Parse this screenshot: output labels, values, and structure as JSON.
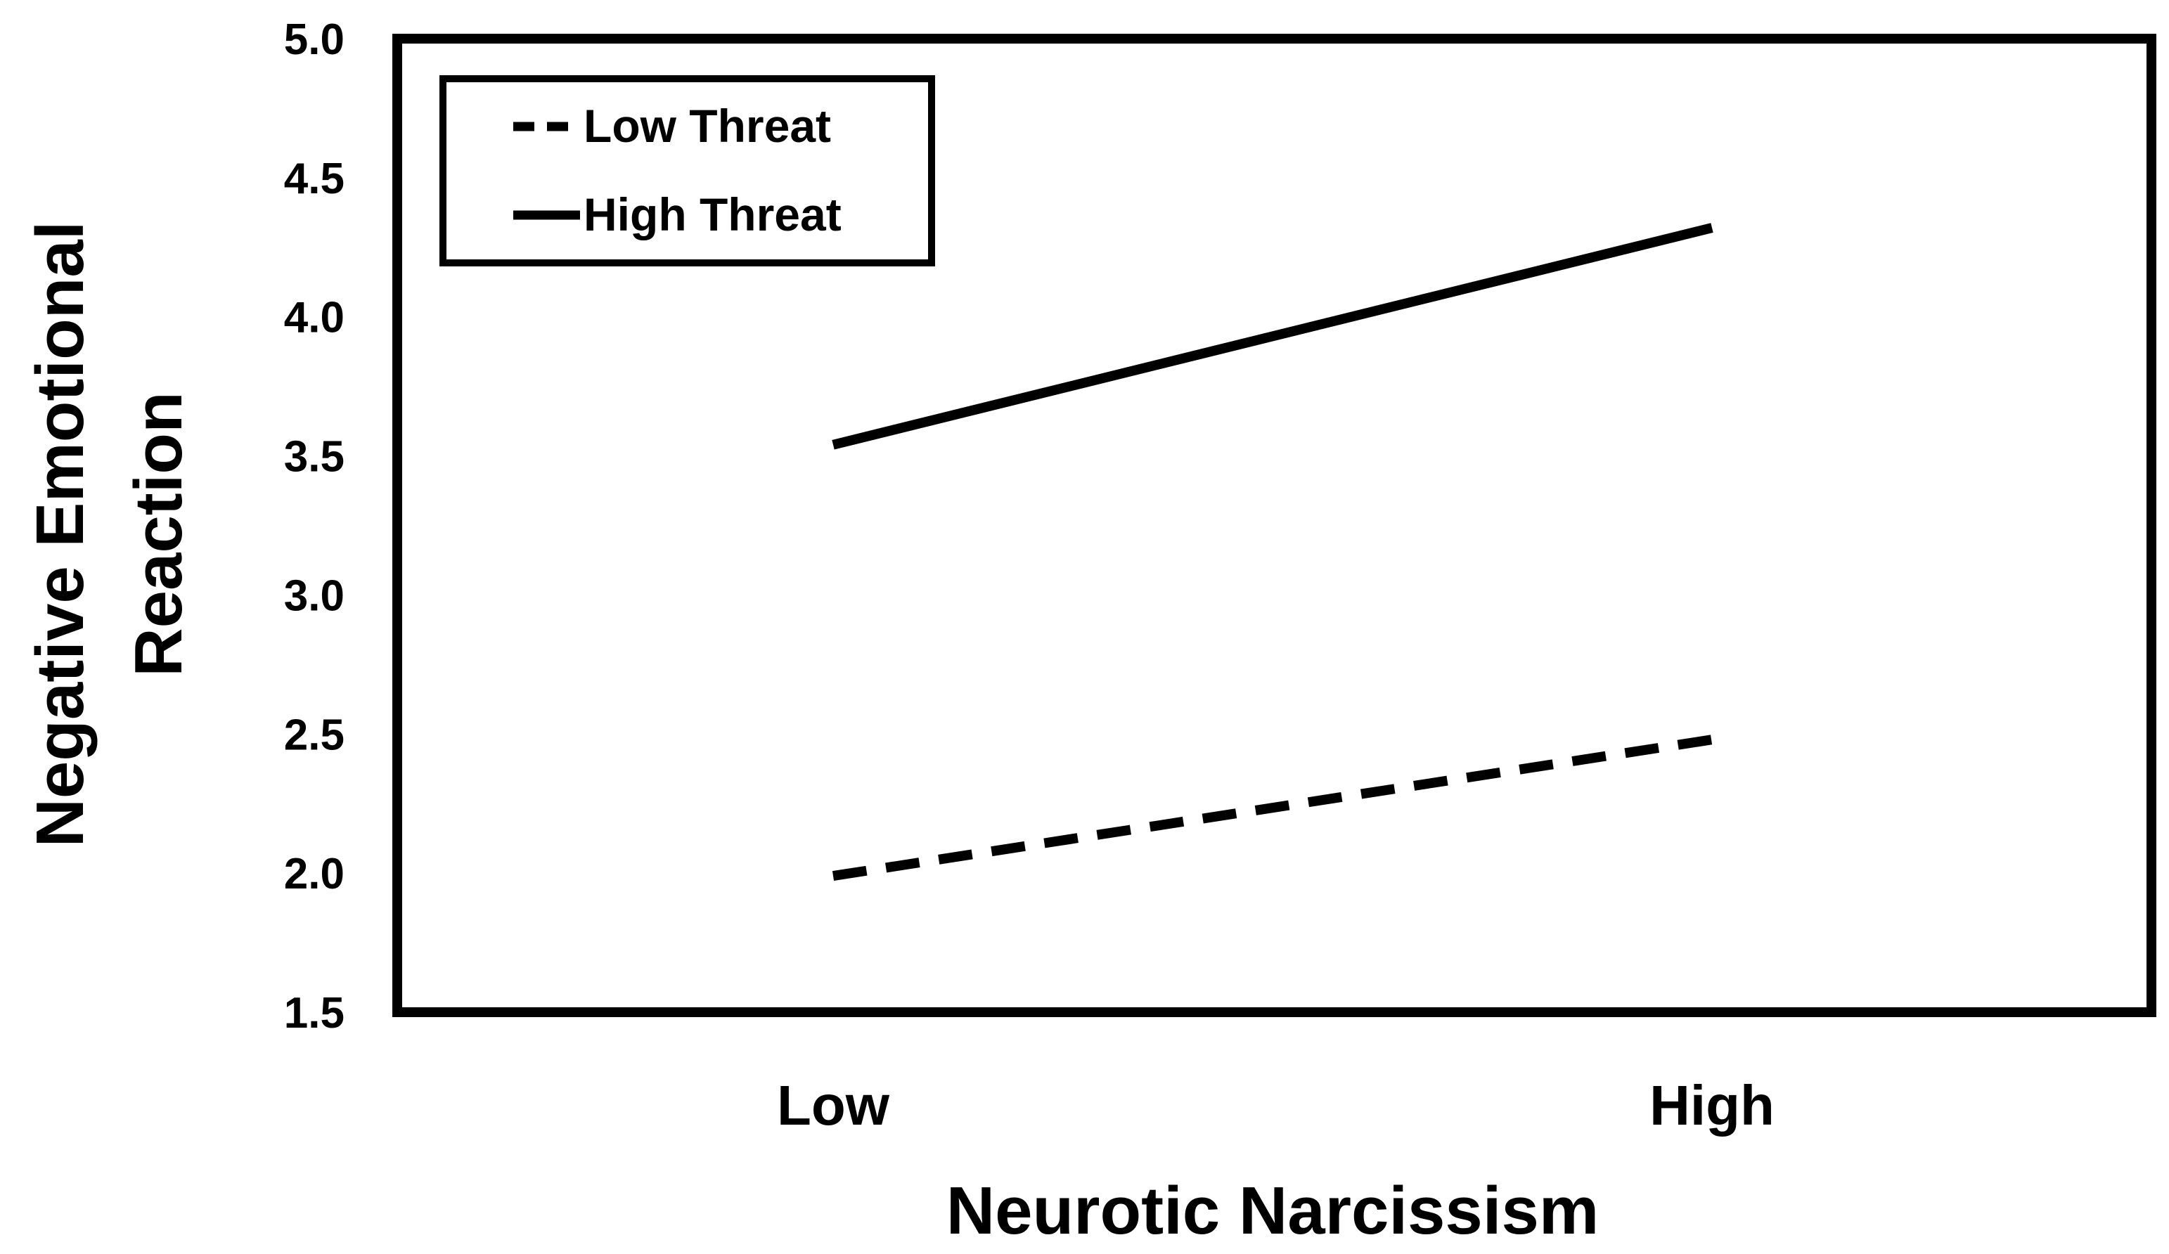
{
  "chart_data": {
    "type": "line",
    "categories": [
      "Low",
      "High"
    ],
    "series": [
      {
        "name": "Low Threat",
        "values": [
          1.99,
          2.48
        ],
        "style": "dashed",
        "color": "#000000"
      },
      {
        "name": "High Threat",
        "values": [
          3.54,
          4.32
        ],
        "style": "solid",
        "color": "#000000"
      }
    ],
    "xlabel": "Neurotic Narcissism",
    "ylabel_lines": [
      "Negative Emotional",
      "Reaction"
    ],
    "ylim": [
      1.5,
      5.0
    ],
    "yticks": [
      "1.5",
      "2.0",
      "2.5",
      "3.0",
      "3.5",
      "4.0",
      "4.5",
      "5.0"
    ],
    "grid": false,
    "legend_position": "top-left"
  }
}
